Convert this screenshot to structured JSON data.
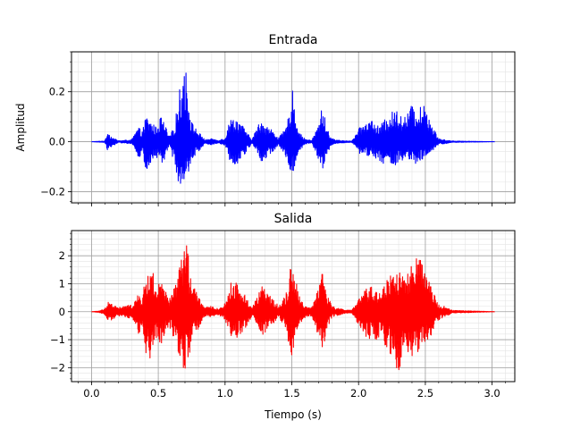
{
  "chart_data": [
    {
      "type": "line",
      "title": "Entrada",
      "xlabel": "",
      "ylabel": "Amplitud",
      "xlim": [
        -0.15,
        3.17
      ],
      "ylim": [
        -0.245,
        0.36
      ],
      "yticks": [
        -0.2,
        0.0,
        0.2
      ],
      "ytick_labels": [
        "−0.2",
        "0.0",
        "0.2"
      ],
      "xticks": [
        0.0,
        0.5,
        1.0,
        1.5,
        2.0,
        2.5,
        3.0
      ],
      "xtick_labels": [],
      "grid": true,
      "series": [
        {
          "color": "#0000ff",
          "envelope": {
            "x": [
              0.0,
              0.1,
              0.12,
              0.15,
              0.2,
              0.3,
              0.35,
              0.38,
              0.41,
              0.43,
              0.45,
              0.48,
              0.52,
              0.55,
              0.58,
              0.62,
              0.65,
              0.68,
              0.7,
              0.72,
              0.75,
              0.8,
              0.85,
              0.9,
              0.95,
              1.0,
              1.03,
              1.06,
              1.1,
              1.15,
              1.2,
              1.25,
              1.28,
              1.32,
              1.36,
              1.4,
              1.45,
              1.48,
              1.5,
              1.52,
              1.55,
              1.6,
              1.65,
              1.7,
              1.73,
              1.76,
              1.8,
              1.85,
              1.9,
              1.95,
              2.0,
              2.05,
              2.1,
              2.15,
              2.2,
              2.25,
              2.3,
              2.35,
              2.4,
              2.45,
              2.5,
              2.55,
              2.6,
              2.7,
              3.02
            ],
            "pos": [
              0.0,
              0.003,
              0.045,
              0.02,
              0.004,
              0.008,
              0.06,
              0.04,
              0.11,
              0.085,
              0.08,
              0.06,
              0.1,
              0.07,
              0.02,
              0.06,
              0.18,
              0.27,
              0.33,
              0.22,
              0.08,
              0.04,
              0.008,
              0.012,
              0.006,
              0.015,
              0.08,
              0.1,
              0.09,
              0.05,
              0.008,
              0.07,
              0.09,
              0.06,
              0.045,
              0.015,
              0.05,
              0.11,
              0.22,
              0.16,
              0.04,
              0.01,
              0.006,
              0.07,
              0.15,
              0.06,
              0.012,
              0.006,
              0.004,
              0.003,
              0.05,
              0.08,
              0.09,
              0.06,
              0.09,
              0.12,
              0.13,
              0.1,
              0.15,
              0.13,
              0.16,
              0.07,
              0.012,
              0.003,
              0.0
            ],
            "neg": [
              0.0,
              0.003,
              0.035,
              0.02,
              0.004,
              0.008,
              0.07,
              0.045,
              0.13,
              0.12,
              0.08,
              0.06,
              0.095,
              0.07,
              0.02,
              0.08,
              0.16,
              0.18,
              0.21,
              0.16,
              0.07,
              0.04,
              0.008,
              0.012,
              0.006,
              0.015,
              0.07,
              0.09,
              0.085,
              0.05,
              0.008,
              0.05,
              0.09,
              0.06,
              0.04,
              0.015,
              0.05,
              0.1,
              0.18,
              0.12,
              0.04,
              0.01,
              0.006,
              0.08,
              0.11,
              0.06,
              0.012,
              0.006,
              0.004,
              0.003,
              0.045,
              0.06,
              0.06,
              0.07,
              0.1,
              0.1,
              0.09,
              0.08,
              0.09,
              0.09,
              0.07,
              0.04,
              0.012,
              0.003,
              0.0
            ]
          }
        }
      ]
    },
    {
      "type": "line",
      "title": "Salida",
      "xlabel": "Tiempo (s)",
      "ylabel": "",
      "xlim": [
        -0.15,
        3.17
      ],
      "ylim": [
        -2.5,
        2.9
      ],
      "yticks": [
        -2,
        -1,
        0,
        1,
        2
      ],
      "ytick_labels": [
        "−2",
        "−1",
        "0",
        "1",
        "2"
      ],
      "xticks": [
        0.0,
        0.5,
        1.0,
        1.5,
        2.0,
        2.5,
        3.0
      ],
      "xtick_labels": [
        "0.0",
        "0.5",
        "1.0",
        "1.5",
        "2.0",
        "2.5",
        "3.0"
      ],
      "grid": true,
      "series": [
        {
          "color": "#ff0000",
          "envelope": {
            "x": [
              0.0,
              0.05,
              0.1,
              0.12,
              0.15,
              0.2,
              0.3,
              0.35,
              0.38,
              0.41,
              0.43,
              0.45,
              0.48,
              0.52,
              0.55,
              0.58,
              0.62,
              0.65,
              0.68,
              0.7,
              0.72,
              0.75,
              0.8,
              0.85,
              0.9,
              0.95,
              1.0,
              1.03,
              1.06,
              1.1,
              1.15,
              1.2,
              1.25,
              1.28,
              1.32,
              1.36,
              1.4,
              1.45,
              1.48,
              1.5,
              1.52,
              1.55,
              1.6,
              1.65,
              1.7,
              1.73,
              1.76,
              1.8,
              1.85,
              1.9,
              1.95,
              2.0,
              2.05,
              2.1,
              2.15,
              2.2,
              2.25,
              2.3,
              2.35,
              2.4,
              2.45,
              2.5,
              2.55,
              2.6,
              2.7,
              3.02
            ],
            "pos": [
              0.0,
              0.02,
              0.1,
              0.45,
              0.3,
              0.15,
              0.25,
              0.6,
              0.55,
              1.4,
              1.2,
              1.8,
              0.8,
              1.1,
              0.8,
              0.4,
              0.9,
              1.6,
              2.1,
              2.55,
              2.3,
              1.0,
              0.6,
              0.15,
              0.2,
              0.1,
              0.3,
              0.8,
              1.3,
              0.9,
              0.6,
              0.15,
              0.7,
              0.95,
              0.6,
              0.5,
              0.2,
              0.6,
              1.2,
              2.0,
              1.5,
              0.6,
              0.2,
              0.15,
              1.0,
              1.7,
              0.7,
              0.2,
              0.12,
              0.08,
              0.05,
              0.45,
              0.8,
              0.9,
              0.7,
              1.1,
              1.4,
              1.6,
              1.2,
              1.7,
              2.0,
              1.4,
              0.8,
              0.3,
              0.05,
              0.0
            ],
            "neg": [
              0.0,
              0.02,
              0.1,
              0.3,
              0.3,
              0.15,
              0.25,
              0.8,
              0.6,
              1.6,
              1.5,
              2.0,
              0.9,
              1.2,
              0.9,
              0.5,
              1.0,
              1.6,
              2.0,
              2.2,
              2.1,
              1.1,
              0.6,
              0.15,
              0.2,
              0.1,
              0.3,
              0.7,
              1.0,
              0.9,
              0.7,
              0.15,
              0.6,
              0.9,
              0.6,
              0.45,
              0.2,
              0.6,
              1.3,
              2.0,
              1.4,
              0.6,
              0.2,
              0.15,
              0.9,
              1.5,
              0.7,
              0.2,
              0.12,
              0.08,
              0.05,
              0.5,
              0.9,
              1.0,
              1.0,
              1.2,
              1.6,
              2.2,
              1.4,
              1.7,
              1.4,
              1.2,
              0.8,
              0.3,
              0.05,
              0.0
            ]
          }
        }
      ]
    }
  ]
}
